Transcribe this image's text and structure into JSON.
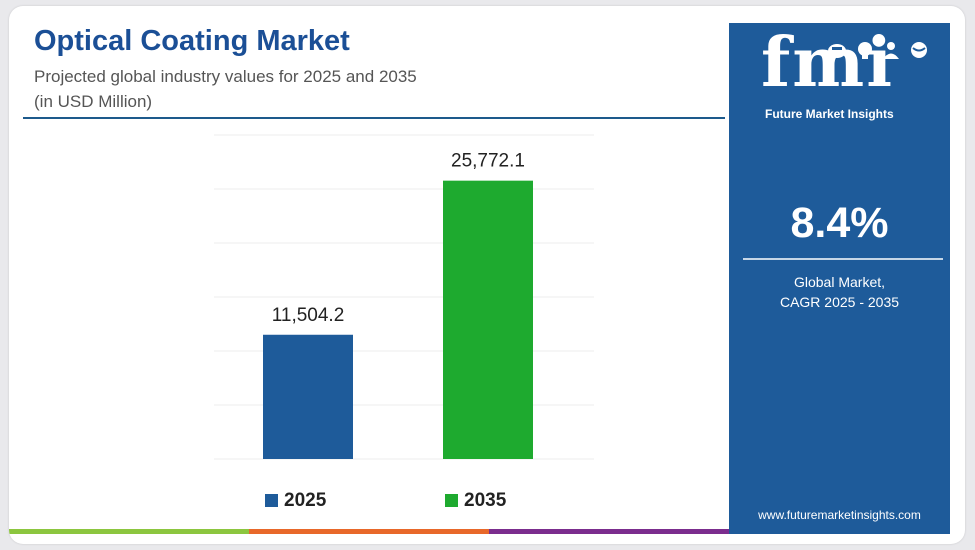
{
  "title": "Optical Coating Market",
  "subtitle_line1": "Projected global industry values for 2025 and 2035",
  "subtitle_line2": "(in USD Million)",
  "colors": {
    "title": "#1b4f96",
    "bar_2025": "#1e5b9a",
    "bar_2035": "#1eaa2f",
    "panel": "#1e5b9a",
    "bottom_bar": [
      "#8cc63f",
      "#e8682a",
      "#7b2d8e"
    ]
  },
  "chart_data": {
    "type": "bar",
    "categories": [
      "2025",
      "2035"
    ],
    "values": [
      11504.2,
      25772.1
    ],
    "value_labels": [
      "11,504.2",
      "25,772.1"
    ],
    "legend": [
      "2025",
      "2035"
    ],
    "legend_position": "bottom",
    "grid": true,
    "ylim": [
      0,
      30000
    ]
  },
  "panel": {
    "logo_text": "fmi",
    "logo_name": "Future Market Insights",
    "logo_icons": [
      "beaker-icon",
      "lightbulb-icon",
      "person-icon",
      "globe-icon"
    ],
    "cagr_value": "8.4%",
    "cagr_caption_line1": "Global Market,",
    "cagr_caption_line2": "CAGR 2025 - 2035",
    "website": "www.futuremarketinsights.com"
  }
}
